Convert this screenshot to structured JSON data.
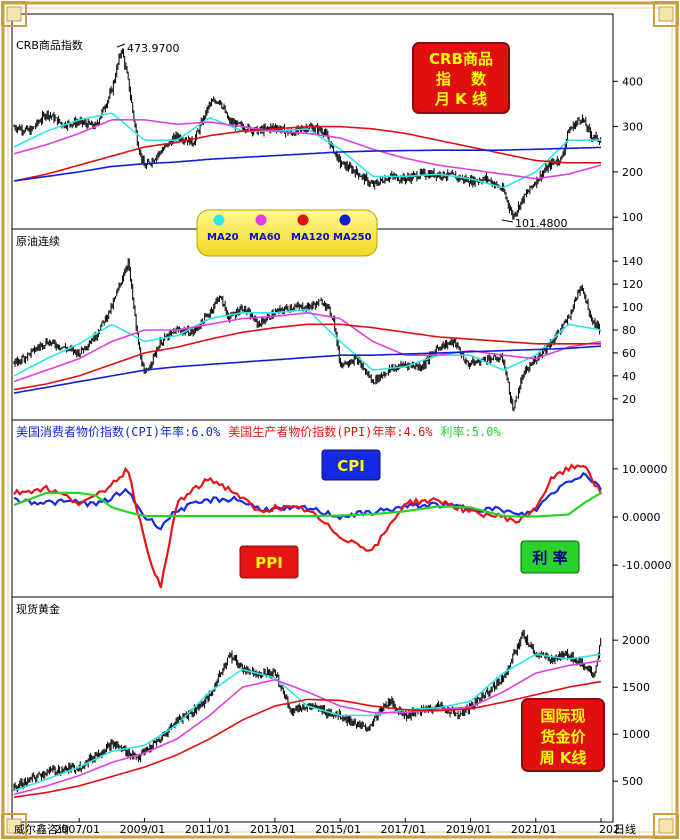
{
  "colors": {
    "ma20": "#2ee6e6",
    "ma60": "#e040e0",
    "ma120": "#e01010",
    "ma250": "#1020d0",
    "cpi": "#1428e6",
    "ppi": "#e61414",
    "rate": "#28d228",
    "candle": "#000000",
    "badge_red": "#e01010",
    "badge_text": "#ffff00"
  },
  "x_axis": {
    "ticks": [
      "2007/01",
      "2009/01",
      "2011/01",
      "2013/01",
      "2015/01",
      "2017/01",
      "2019/01",
      "2021/01",
      "202"
    ],
    "end_label": "日线",
    "watermark": "威尔鑫咨询"
  },
  "panels": {
    "crb": {
      "title": "CRB商品指数",
      "badge_lines": [
        "CRB商品",
        "指　 数",
        "月 K 线"
      ],
      "max_label": "473.9700",
      "min_label": "101.4800",
      "yticks": [
        "400",
        "300",
        "200",
        "100"
      ]
    },
    "oil": {
      "title": "原油连续",
      "yticks": [
        "140",
        "120",
        "100",
        "80",
        "60",
        "40",
        "20"
      ]
    },
    "macro": {
      "cpi_label": "美国消费者物价指数(CPI)年率:",
      "cpi_value": "6.0%",
      "ppi_label": "美国生产者物价指数(PPI)年率:",
      "ppi_value": "4.6%",
      "rate_label": "利率:",
      "rate_value": "5.0%",
      "badge_cpi": "CPI",
      "badge_ppi": "PPI",
      "badge_rate": "利 率",
      "yticks": [
        "10.0000",
        "0.0000",
        "-10.0000"
      ]
    },
    "gold": {
      "title": "现货黄金",
      "badge_lines": [
        "国际现",
        "货金价",
        "周 K线"
      ],
      "yticks": [
        "2000",
        "1500",
        "1000",
        "500"
      ]
    }
  },
  "legend": {
    "items": [
      {
        "label": "MA20",
        "color": "#2ee6e6"
      },
      {
        "label": "MA60",
        "color": "#e040e0"
      },
      {
        "label": "MA120",
        "color": "#e01010"
      },
      {
        "label": "MA250",
        "color": "#1020d0"
      }
    ]
  },
  "chart_data": [
    {
      "type": "candlestick",
      "title": "CRB商品指数",
      "x_start": 2005.0,
      "x_end": 2023.0,
      "ylim": [
        85,
        500
      ],
      "series": [
        {
          "name": "price",
          "x": [
            2005.0,
            2005.5,
            2006.0,
            2006.5,
            2007.0,
            2007.5,
            2008.0,
            2008.3,
            2008.5,
            2008.8,
            2009.0,
            2009.5,
            2010.0,
            2010.5,
            2011.0,
            2011.3,
            2011.6,
            2012.0,
            2012.5,
            2013.0,
            2013.5,
            2014.0,
            2014.5,
            2015.0,
            2015.5,
            2016.0,
            2016.5,
            2017.0,
            2017.5,
            2018.0,
            2018.5,
            2019.0,
            2019.5,
            2020.0,
            2020.3,
            2020.6,
            2021.0,
            2021.5,
            2021.8,
            2022.0,
            2022.4,
            2022.7,
            2023.0
          ],
          "y": [
            300,
            290,
            330,
            305,
            310,
            300,
            380,
            473.97,
            400,
            260,
            210,
            245,
            280,
            265,
            350,
            360,
            310,
            300,
            290,
            300,
            285,
            300,
            290,
            220,
            200,
            170,
            190,
            185,
            195,
            195,
            190,
            180,
            185,
            160,
            101.48,
            140,
            180,
            220,
            230,
            290,
            320,
            280,
            270
          ]
        },
        {
          "name": "MA20",
          "x": [
            2005,
            2006,
            2007,
            2008,
            2009,
            2010,
            2011,
            2012,
            2013,
            2014,
            2015,
            2016,
            2017,
            2018,
            2019,
            2020,
            2021,
            2022,
            2023
          ],
          "y": [
            255,
            290,
            315,
            330,
            270,
            270,
            320,
            290,
            290,
            295,
            250,
            190,
            190,
            195,
            185,
            165,
            200,
            270,
            270
          ]
        },
        {
          "name": "MA60",
          "x": [
            2005,
            2006,
            2007,
            2008,
            2009,
            2010,
            2011,
            2012,
            2013,
            2014,
            2015,
            2016,
            2017,
            2018,
            2019,
            2020,
            2021,
            2022,
            2023
          ],
          "y": [
            240,
            260,
            285,
            315,
            315,
            305,
            310,
            300,
            290,
            285,
            275,
            250,
            230,
            215,
            205,
            195,
            185,
            195,
            215
          ]
        },
        {
          "name": "MA120",
          "x": [
            2005,
            2006,
            2007,
            2008,
            2009,
            2010,
            2011,
            2012,
            2013,
            2014,
            2015,
            2016,
            2017,
            2018,
            2019,
            2020,
            2021,
            2022,
            2023
          ],
          "y": [
            180,
            195,
            215,
            235,
            255,
            265,
            280,
            290,
            295,
            300,
            300,
            295,
            285,
            270,
            255,
            240,
            225,
            220,
            220
          ]
        },
        {
          "name": "MA250",
          "x": [
            2005,
            2006,
            2007,
            2008,
            2009,
            2010,
            2011,
            2012,
            2013,
            2014,
            2015,
            2016,
            2017,
            2018,
            2019,
            2020,
            2021,
            2022,
            2023
          ],
          "y": [
            180,
            190,
            200,
            212,
            218,
            222,
            228,
            232,
            236,
            240,
            244,
            246,
            247,
            248,
            248,
            248,
            250,
            252,
            254
          ]
        }
      ],
      "annotations": [
        "473.9700",
        "101.4800"
      ]
    },
    {
      "type": "candlestick",
      "title": "原油连续",
      "x_start": 2005.0,
      "x_end": 2023.0,
      "ylim": [
        5,
        155
      ],
      "series": [
        {
          "name": "price",
          "x": [
            2005.0,
            2005.5,
            2006.0,
            2006.5,
            2007.0,
            2007.5,
            2008.0,
            2008.5,
            2008.8,
            2009.0,
            2009.5,
            2010.0,
            2010.5,
            2011.0,
            2011.3,
            2011.6,
            2012.0,
            2012.5,
            2013.0,
            2013.5,
            2014.0,
            2014.5,
            2014.8,
            2015.0,
            2015.5,
            2016.0,
            2016.5,
            2017.0,
            2017.5,
            2018.0,
            2018.5,
            2018.9,
            2019.5,
            2020.0,
            2020.3,
            2020.6,
            2021.0,
            2021.5,
            2022.0,
            2022.4,
            2022.7,
            2023.0
          ],
          "y": [
            50,
            60,
            70,
            65,
            60,
            75,
            100,
            140,
            70,
            40,
            70,
            80,
            78,
            95,
            110,
            90,
            100,
            85,
            95,
            100,
            100,
            105,
            90,
            50,
            55,
            35,
            45,
            50,
            48,
            65,
            70,
            50,
            55,
            55,
            10,
            40,
            55,
            70,
            90,
            120,
            90,
            80
          ]
        },
        {
          "name": "MA20",
          "x": [
            2005,
            2006,
            2007,
            2008,
            2009,
            2010,
            2011,
            2012,
            2013,
            2014,
            2015,
            2016,
            2017,
            2018,
            2019,
            2020,
            2021,
            2022,
            2023
          ],
          "y": [
            40,
            55,
            68,
            85,
            70,
            75,
            90,
            95,
            95,
            98,
            70,
            45,
            48,
            58,
            58,
            45,
            58,
            85,
            80
          ]
        },
        {
          "name": "MA60",
          "x": [
            2005,
            2006,
            2007,
            2008,
            2009,
            2010,
            2011,
            2012,
            2013,
            2014,
            2015,
            2016,
            2017,
            2018,
            2019,
            2020,
            2021,
            2022,
            2023
          ],
          "y": [
            35,
            45,
            55,
            70,
            80,
            80,
            85,
            90,
            92,
            95,
            90,
            70,
            58,
            58,
            62,
            58,
            55,
            65,
            70
          ]
        },
        {
          "name": "MA120",
          "x": [
            2005,
            2006,
            2007,
            2008,
            2009,
            2010,
            2011,
            2012,
            2013,
            2014,
            2015,
            2016,
            2017,
            2018,
            2019,
            2020,
            2021,
            2022,
            2023
          ],
          "y": [
            28,
            33,
            40,
            50,
            60,
            65,
            72,
            78,
            82,
            85,
            85,
            82,
            78,
            74,
            72,
            70,
            68,
            68,
            68
          ]
        },
        {
          "name": "MA250",
          "x": [
            2005,
            2006,
            2007,
            2008,
            2009,
            2010,
            2011,
            2012,
            2013,
            2014,
            2015,
            2016,
            2017,
            2018,
            2019,
            2020,
            2021,
            2022,
            2023
          ],
          "y": [
            25,
            30,
            35,
            40,
            45,
            48,
            50,
            52,
            54,
            56,
            58,
            58,
            59,
            60,
            61,
            62,
            63,
            64,
            66
          ]
        }
      ]
    },
    {
      "type": "line",
      "title": "",
      "x_start": 2005.0,
      "x_end": 2023.0,
      "ylim": [
        -16,
        16
      ],
      "series": [
        {
          "name": "美国消费者物价指数(CPI)年率",
          "x": [
            2005,
            2006,
            2007,
            2007.5,
            2008,
            2008.5,
            2009,
            2009.5,
            2010,
            2011,
            2011.8,
            2012.5,
            2013,
            2014,
            2015,
            2016,
            2017,
            2018,
            2019,
            2020,
            2020.5,
            2021,
            2021.5,
            2022,
            2022.5,
            2023
          ],
          "y": [
            3.5,
            3,
            3.2,
            2.5,
            4,
            5.5,
            0,
            -2,
            1.5,
            3.5,
            3.8,
            1.8,
            1.5,
            1.8,
            0.1,
            1,
            2.1,
            2.6,
            1.8,
            1.5,
            0.2,
            1.5,
            5,
            7.5,
            9,
            6
          ]
        },
        {
          "name": "美国生产者物价指数(PPI)年率",
          "x": [
            2005,
            2006,
            2007,
            2007.5,
            2008,
            2008.5,
            2009,
            2009.5,
            2010,
            2010.8,
            2011,
            2011.8,
            2012.5,
            2013,
            2014,
            2015,
            2016,
            2017,
            2018,
            2019,
            2020,
            2020.5,
            2021,
            2021.5,
            2022,
            2022.5,
            2023
          ],
          "y": [
            5,
            6,
            3,
            4,
            7,
            10,
            -5,
            -15,
            3,
            7,
            8,
            5,
            1,
            2,
            1.5,
            -4,
            -7,
            3,
            3.5,
            1,
            0,
            -1,
            2,
            8,
            10,
            11,
            4.6
          ]
        },
        {
          "name": "利率",
          "x": [
            2005,
            2006,
            2007,
            2007.5,
            2008,
            2008.5,
            2009,
            2010,
            2012,
            2014,
            2015,
            2016,
            2017,
            2018,
            2019,
            2020,
            2020.5,
            2021,
            2022,
            2022.5,
            2023
          ],
          "y": [
            2.5,
            5,
            5,
            4.5,
            2,
            1,
            0.2,
            0.2,
            0.2,
            0.2,
            0.3,
            0.6,
            1.2,
            2.2,
            2,
            0.2,
            0.1,
            0.1,
            0.5,
            3,
            5
          ]
        }
      ],
      "values_shown": {
        "CPI": "6.0%",
        "PPI": "4.6%",
        "利率": "5.0%"
      }
    },
    {
      "type": "candlestick",
      "title": "现货黄金",
      "x_start": 2005.0,
      "x_end": 2023.0,
      "ylim": [
        300,
        2300
      ],
      "series": [
        {
          "name": "price",
          "x": [
            2005.0,
            2006.0,
            2007.0,
            2008.0,
            2008.8,
            2009.5,
            2010.0,
            2010.5,
            2011.0,
            2011.6,
            2012.0,
            2012.5,
            2013.0,
            2013.5,
            2014.0,
            2015.0,
            2015.8,
            2016.5,
            2017.0,
            2018.0,
            2018.7,
            2019.5,
            2020.0,
            2020.6,
            2021.0,
            2021.5,
            2022.0,
            2022.8,
            2023.0
          ],
          "y": [
            430,
            600,
            650,
            900,
            750,
            950,
            1150,
            1250,
            1400,
            1850,
            1700,
            1650,
            1650,
            1250,
            1300,
            1200,
            1050,
            1350,
            1200,
            1300,
            1200,
            1450,
            1600,
            2050,
            1850,
            1800,
            1850,
            1650,
            2000
          ]
        },
        {
          "name": "MA20",
          "x": [
            2005,
            2006,
            2007,
            2008,
            2009,
            2010,
            2011,
            2012,
            2013,
            2014,
            2015,
            2016,
            2017,
            2018,
            2019,
            2020,
            2021,
            2022,
            2023
          ],
          "y": [
            400,
            520,
            650,
            820,
            880,
            1100,
            1450,
            1690,
            1600,
            1300,
            1200,
            1200,
            1260,
            1280,
            1350,
            1650,
            1850,
            1800,
            1850
          ]
        },
        {
          "name": "MA60",
          "x": [
            2005,
            2006,
            2007,
            2008,
            2009,
            2010,
            2011,
            2012,
            2013,
            2014,
            2015,
            2016,
            2017,
            2018,
            2019,
            2020,
            2021,
            2022,
            2023
          ],
          "y": [
            360,
            450,
            560,
            700,
            800,
            950,
            1200,
            1500,
            1580,
            1450,
            1300,
            1230,
            1230,
            1260,
            1290,
            1450,
            1650,
            1730,
            1780
          ]
        },
        {
          "name": "MA120",
          "x": [
            2005,
            2006,
            2007,
            2008,
            2009,
            2010,
            2011,
            2012,
            2013,
            2014,
            2015,
            2016,
            2017,
            2018,
            2019,
            2020,
            2021,
            2022,
            2023
          ],
          "y": [
            330,
            380,
            450,
            550,
            650,
            780,
            950,
            1150,
            1300,
            1370,
            1360,
            1300,
            1260,
            1250,
            1270,
            1340,
            1420,
            1500,
            1560
          ]
        }
      ]
    }
  ]
}
